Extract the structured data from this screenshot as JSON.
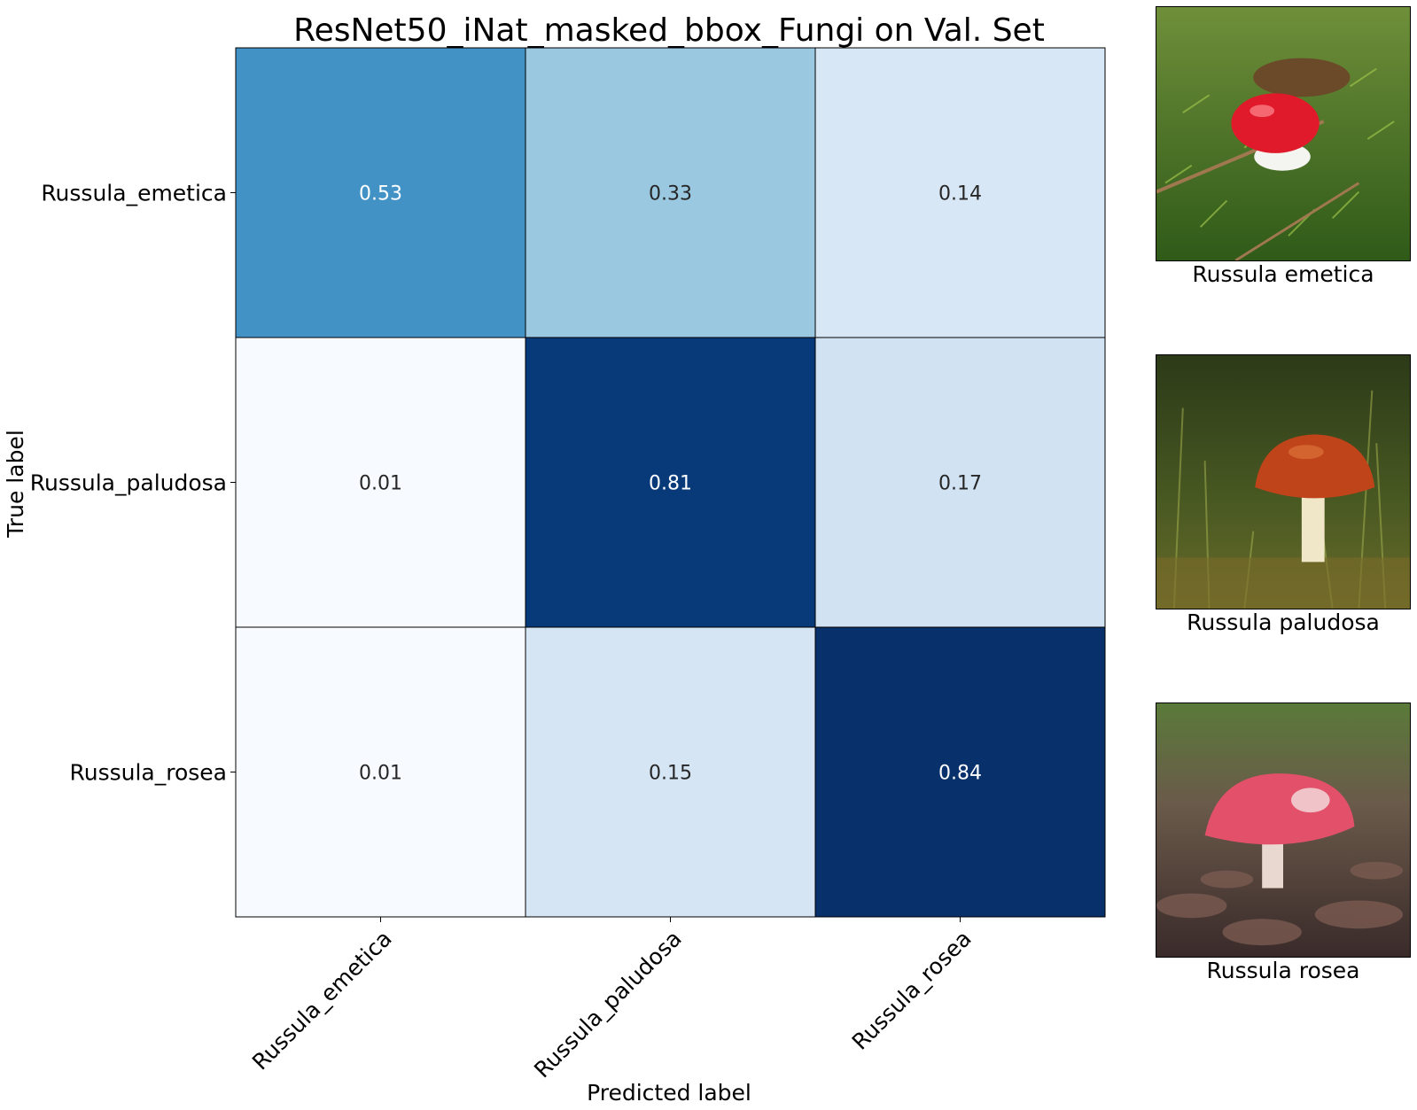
{
  "chart_data": {
    "type": "heatmap",
    "title": "ResNet50_iNat_masked_bbox_Fungi on Val. Set",
    "xlabel": "Predicted label",
    "ylabel": "True label",
    "x_categories": [
      "Russula_emetica",
      "Russula_paludosa",
      "Russula_rosea"
    ],
    "y_categories": [
      "Russula_emetica",
      "Russula_paludosa",
      "Russula_rosea"
    ],
    "values": [
      [
        0.53,
        0.33,
        0.14
      ],
      [
        0.01,
        0.81,
        0.17
      ],
      [
        0.01,
        0.15,
        0.84
      ]
    ],
    "colormap": "Blues",
    "colorbar": false
  },
  "examples": [
    {
      "caption": "Russula emetica",
      "icon": "red-cap-mushroom-on-moss-photo"
    },
    {
      "caption": "Russula paludosa",
      "icon": "orange-cap-mushroom-in-grass-photo"
    },
    {
      "caption": "Russula rosea",
      "icon": "pink-cap-mushroom-in-leaves-photo"
    }
  ]
}
